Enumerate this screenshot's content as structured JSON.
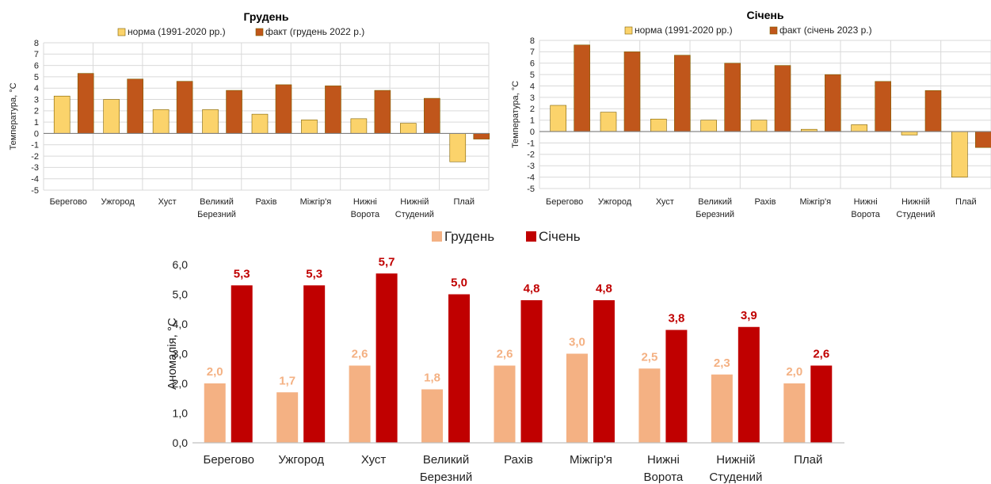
{
  "chart_data": [
    {
      "type": "bar",
      "title": "Грудень",
      "ylabel": "Температура, °С",
      "ylim": [
        -5,
        8
      ],
      "grid": true,
      "legend": "top",
      "categories": [
        [
          "Берегово"
        ],
        [
          "Ужгород"
        ],
        [
          "Хуст"
        ],
        [
          "Великий",
          "Березний"
        ],
        [
          "Рахів"
        ],
        [
          "Міжгір'я"
        ],
        [
          "Нижні",
          "Ворота"
        ],
        [
          "Нижній",
          "Студений"
        ],
        [
          "Плай"
        ]
      ],
      "series": [
        {
          "name": "норма (1991-2020 рр.)",
          "color": "#fbd36b",
          "values": [
            3.3,
            3.0,
            2.1,
            2.1,
            1.7,
            1.2,
            1.3,
            0.9,
            -2.5
          ]
        },
        {
          "name": "факт (грудень 2022 р.)",
          "color": "#c0561b",
          "values": [
            5.3,
            4.8,
            4.6,
            3.8,
            4.3,
            4.2,
            3.8,
            3.1,
            -0.5
          ]
        }
      ]
    },
    {
      "type": "bar",
      "title": "Січень",
      "ylabel": "Температура, °С",
      "ylim": [
        -5,
        8
      ],
      "grid": true,
      "legend": "top",
      "categories": [
        [
          "Берегово"
        ],
        [
          "Ужгород"
        ],
        [
          "Хуст"
        ],
        [
          "Великий",
          "Березний"
        ],
        [
          "Рахів"
        ],
        [
          "Міжгір'я"
        ],
        [
          "Нижні",
          "Ворота"
        ],
        [
          "Нижній",
          "Студений"
        ],
        [
          "Плай"
        ]
      ],
      "series": [
        {
          "name": "норма (1991-2020 рр.)",
          "color": "#fbd36b",
          "values": [
            2.3,
            1.7,
            1.1,
            1.0,
            1.0,
            0.2,
            0.6,
            -0.3,
            -4.0
          ]
        },
        {
          "name": "факт (січень 2023 р.)",
          "color": "#c0561b",
          "values": [
            7.6,
            7.0,
            6.7,
            6.0,
            5.8,
            5.0,
            4.4,
            3.6,
            -1.4
          ]
        }
      ]
    },
    {
      "type": "bar",
      "ylabel": "Аномалія, °С",
      "ylim": [
        0,
        6
      ],
      "grid": false,
      "legend": "top",
      "categories": [
        [
          "Берегово"
        ],
        [
          "Ужгород"
        ],
        [
          "Хуст"
        ],
        [
          "Великий",
          "Березний"
        ],
        [
          "Рахів"
        ],
        [
          "Міжгір'я"
        ],
        [
          "Нижні",
          "Ворота"
        ],
        [
          "Нижній",
          "Студений"
        ],
        [
          "Плай"
        ]
      ],
      "series": [
        {
          "name": "Грудень",
          "color": "#f4b183",
          "values": [
            2.0,
            1.7,
            2.6,
            1.8,
            2.6,
            3.0,
            2.5,
            2.3,
            2.0
          ]
        },
        {
          "name": "Січень",
          "color": "#c00000",
          "values": [
            5.3,
            5.3,
            5.7,
            5.0,
            4.8,
            4.8,
            3.8,
            3.9,
            2.6
          ]
        }
      ]
    }
  ]
}
